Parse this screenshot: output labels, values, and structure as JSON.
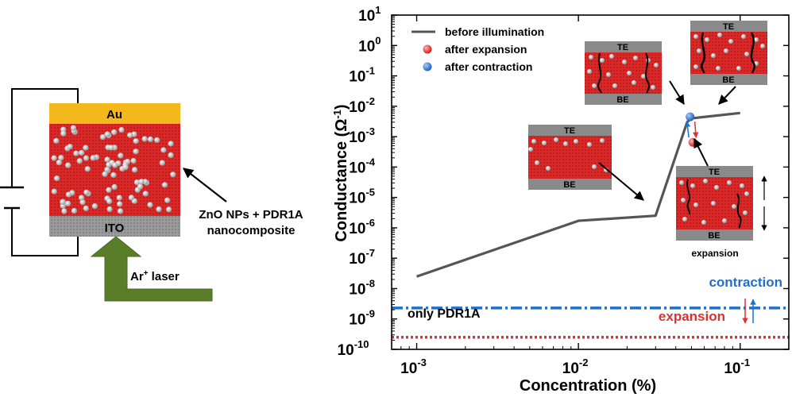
{
  "device": {
    "top_electrode": "Au",
    "bottom_electrode": "ITO",
    "layer_label_line1": "ZnO NPs + PDR1A",
    "layer_label_line2": "nanocomposite",
    "laser_label_main": "Ar",
    "laser_label_sup": "+",
    "laser_label_rest": " laser"
  },
  "insets": {
    "te": "TE",
    "be": "BE",
    "expansion_caption": "expansion"
  },
  "chart_data": {
    "type": "line",
    "xlabel": "Concentration (%)",
    "ylabel_main": "Conductance (Ω",
    "ylabel_sup": "-1",
    "ylabel_close": ")",
    "x_scale": "log",
    "y_scale": "log",
    "xlim": [
      0.0007,
      0.2
    ],
    "ylim": [
      1e-10,
      10
    ],
    "x_ticks": [
      {
        "value": 0.001,
        "base": "10",
        "exp": "-3"
      },
      {
        "value": 0.01,
        "base": "10",
        "exp": "-2"
      },
      {
        "value": 0.1,
        "base": "10",
        "exp": "-1"
      }
    ],
    "y_ticks": [
      {
        "value": 10,
        "base": "10",
        "exp": "1"
      },
      {
        "value": 1,
        "base": "10",
        "exp": "0"
      },
      {
        "value": 0.1,
        "base": "10",
        "exp": "-1"
      },
      {
        "value": 0.01,
        "base": "10",
        "exp": "-2"
      },
      {
        "value": 0.001,
        "base": "10",
        "exp": "-3"
      },
      {
        "value": 0.0001,
        "base": "10",
        "exp": "-4"
      },
      {
        "value": 1e-05,
        "base": "10",
        "exp": "-5"
      },
      {
        "value": 1e-06,
        "base": "10",
        "exp": "-6"
      },
      {
        "value": 1e-07,
        "base": "10",
        "exp": "-7"
      },
      {
        "value": 1e-08,
        "base": "10",
        "exp": "-8"
      },
      {
        "value": 1e-09,
        "base": "10",
        "exp": "-9"
      },
      {
        "value": 1e-10,
        "base": "10",
        "exp": "-10"
      }
    ],
    "legend_position": "top-left",
    "series": [
      {
        "name": "before illumination",
        "color": "#555555",
        "x": [
          0.001,
          0.01,
          0.03,
          0.047,
          0.05,
          0.1
        ],
        "y": [
          2.5e-08,
          1.7e-06,
          2.5e-06,
          0.003,
          0.004,
          0.006
        ]
      },
      {
        "name": "after expansion",
        "color": "#e03030",
        "x": [
          0.051
        ],
        "y": [
          0.00065
        ]
      },
      {
        "name": "after contraction",
        "color": "#1f6fd1",
        "x": [
          0.049
        ],
        "y": [
          0.0045
        ]
      }
    ],
    "baselines": [
      {
        "label": "only PDR1A",
        "y": 2.3e-09,
        "color": "#1f6fd1",
        "style": "dash-dot"
      },
      {
        "label": "only PDR1A",
        "y": 2.5e-10,
        "color": "#e03030",
        "style": "dotted"
      }
    ],
    "annotations": {
      "only_pdr1a": "only PDR1A",
      "contraction": "contraction",
      "expansion": "expansion"
    }
  }
}
